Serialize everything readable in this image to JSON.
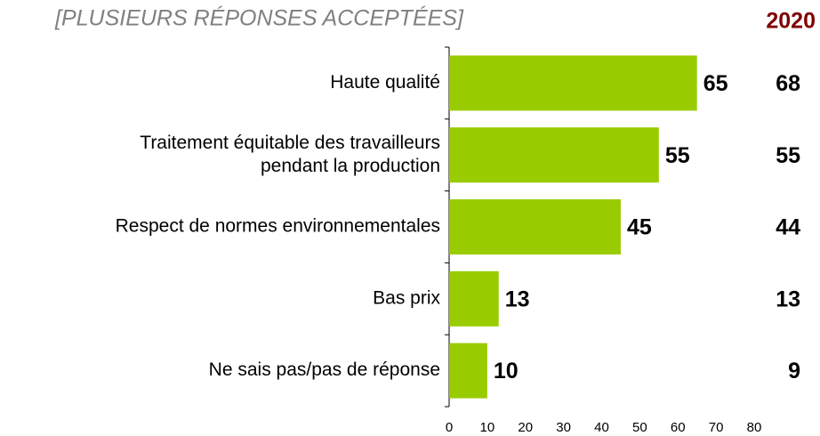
{
  "chart_data": {
    "type": "bar",
    "orientation": "horizontal",
    "subtitle": "[PLUSIEURS RÉPONSES ACCEPTÉES]",
    "categories": [
      "Haute qualité",
      "Traitement équitable des travailleurs\npendant la production",
      "Respect de normes environnementales",
      "Bas prix",
      "Ne sais pas/pas de réponse"
    ],
    "values": [
      65,
      55,
      45,
      13,
      10
    ],
    "color": "#99cc00",
    "comparison": {
      "name": "2020",
      "color": "#800000",
      "values": [
        68,
        55,
        44,
        13,
        9
      ]
    },
    "xlim": [
      0,
      80
    ],
    "xticks": [
      0,
      10,
      20,
      30,
      40,
      50,
      60,
      70,
      80
    ]
  }
}
